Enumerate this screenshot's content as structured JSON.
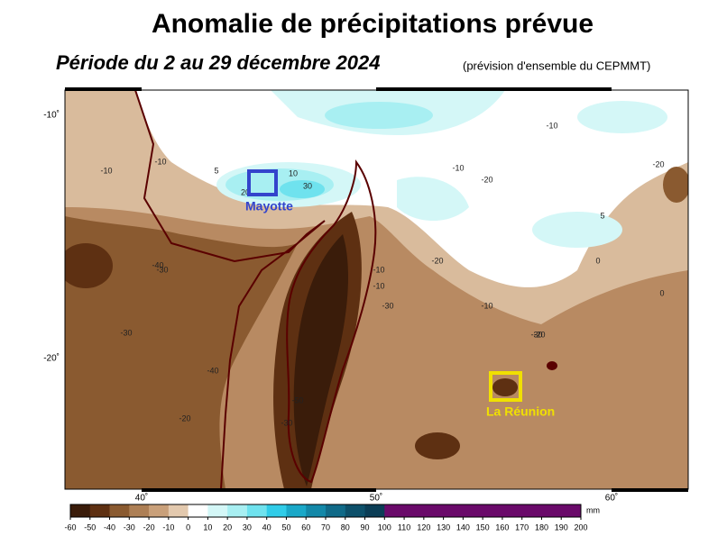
{
  "header": {
    "title": "Anomalie de précipitations prévue",
    "subtitle": "Période du 2 au 29 décembre 2024",
    "note": "(prévision d'ensemble du CEPMMT)"
  },
  "map": {
    "lat_labels": [
      "-10˚",
      "-20˚"
    ],
    "lon_labels": [
      "40˚",
      "50˚",
      "60˚"
    ],
    "places": [
      "Mayotte",
      "La Réunion"
    ],
    "contour_labels": [
      "-10",
      "-10",
      "10",
      "30",
      "20",
      "5",
      "-10",
      "-20",
      "-30",
      "-40",
      "-10",
      "-10",
      "-30",
      "-20",
      "-30",
      "-10",
      "5",
      "-20",
      "0",
      "0",
      "-10",
      "-30",
      "-20",
      "-30",
      "-40",
      "-50",
      "-20"
    ]
  },
  "colorbar": {
    "ticks": [
      -60,
      -50,
      -40,
      -30,
      -20,
      -10,
      0,
      10,
      20,
      30,
      40,
      50,
      60,
      70,
      80,
      90,
      100,
      110,
      120,
      130,
      140,
      150,
      160,
      170,
      180,
      190,
      200
    ],
    "colors": [
      "#3a1c0a",
      "#5e3012",
      "#8a5a30",
      "#ad7f55",
      "#c9a07a",
      "#e3c9ae",
      "#ffffff",
      "#d4f7f7",
      "#a8eff2",
      "#6fe2ee",
      "#30cce8",
      "#1aa8c8",
      "#1388a8",
      "#106a88",
      "#0d506a",
      "#0b3d55",
      "#6a0a6a",
      "#6a0a6a",
      "#6a0a6a",
      "#6a0a6a",
      "#6a0a6a",
      "#6a0a6a",
      "#6a0a6a",
      "#6a0a6a",
      "#6a0a6a",
      "#6a0a6a"
    ],
    "unit": "mm"
  }
}
